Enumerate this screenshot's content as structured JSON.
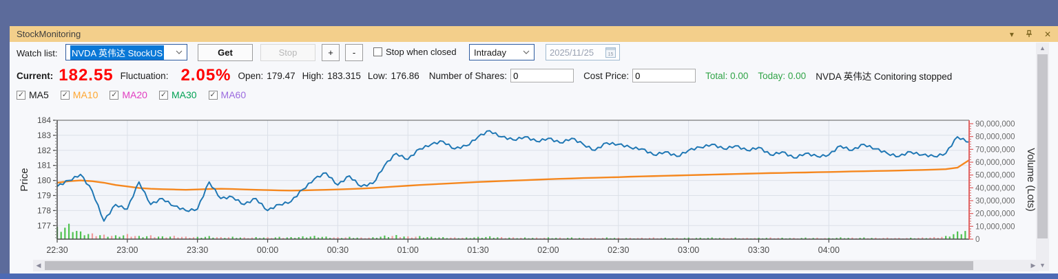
{
  "window": {
    "title": "StockMonitoring",
    "titlebar": {
      "collapse_icon": "▾",
      "close_icon": "✕"
    }
  },
  "toolbar": {
    "watch_list_label": "Watch list:",
    "watch_list_value": "NVDA 英伟达 StockUS",
    "get_label": "Get",
    "stop_label": "Stop",
    "plus_label": "+",
    "minus_label": "-",
    "stop_when_closed_label": "Stop when closed",
    "period_value": "Intraday",
    "date_value": "2025/11/25",
    "calendar_day": "15"
  },
  "info": {
    "current_label": "Current:",
    "current_value": "182.55",
    "fluctuation_label": "Fluctuation:",
    "fluctuation_value": "2.05%",
    "open_label": "Open:",
    "open_value": "179.47",
    "high_label": "High:",
    "high_value": "183.315",
    "low_label": "Low:",
    "low_value": "176.86",
    "shares_label": "Number of Shares:",
    "shares_value": "0",
    "cost_label": "Cost Price:",
    "cost_value": "0",
    "total_text": "Total: 0.00",
    "today_text": "Today: 0.00",
    "status_text": "NVDA 英伟达 Conitoring stopped"
  },
  "ma": {
    "items": [
      {
        "label": "MA5",
        "color": "#1A1A1A",
        "checked": true
      },
      {
        "label": "MA10",
        "color": "#FFA630",
        "checked": true
      },
      {
        "label": "MA20",
        "color": "#E13CC0",
        "checked": true
      },
      {
        "label": "MA30",
        "color": "#00A153",
        "checked": true
      },
      {
        "label": "MA60",
        "color": "#9B6BDF",
        "checked": true
      }
    ]
  },
  "chart_data": {
    "type": "line",
    "title": "",
    "ylabel": "Price",
    "y2label": "Volume (Lots)",
    "ylim": [
      176.1,
      184
    ],
    "y2lim": [
      0,
      90000000
    ],
    "y_ticks": [
      177,
      178,
      179,
      180,
      181,
      182,
      183,
      184
    ],
    "y2_ticks": [
      0,
      10000000,
      20000000,
      30000000,
      40000000,
      50000000,
      60000000,
      70000000,
      80000000,
      90000000
    ],
    "x_total_min": 390,
    "x_step_min": 5,
    "x_ticks": [
      {
        "label": "22:30",
        "min": 0
      },
      {
        "label": "23:00",
        "min": 30
      },
      {
        "label": "23:30",
        "min": 60
      },
      {
        "label": "00:00",
        "min": 90
      },
      {
        "label": "00:30",
        "min": 120
      },
      {
        "label": "01:00",
        "min": 150
      },
      {
        "label": "01:30",
        "min": 180
      },
      {
        "label": "02:00",
        "min": 210
      },
      {
        "label": "02:30",
        "min": 240
      },
      {
        "label": "03:00",
        "min": 270
      },
      {
        "label": "03:30",
        "min": 300
      },
      {
        "label": "04:00",
        "min": 330
      }
    ],
    "grid": true,
    "legend": "none",
    "series": [
      {
        "name": "price",
        "color": "#1F77B4",
        "values": [
          179.6,
          180.0,
          180.4,
          179.3,
          177.3,
          178.4,
          178.1,
          179.9,
          178.4,
          178.8,
          178.3,
          178.0,
          178.1,
          179.9,
          178.8,
          178.9,
          178.4,
          178.8,
          178.0,
          178.4,
          178.6,
          179.4,
          180.1,
          180.5,
          179.7,
          180.3,
          179.6,
          179.8,
          181.0,
          181.8,
          181.4,
          182.1,
          182.4,
          182.6,
          182.1,
          182.3,
          182.9,
          183.3,
          182.9,
          182.7,
          182.9,
          182.6,
          182.8,
          182.5,
          182.8,
          182.4,
          182.0,
          182.5,
          182.4,
          182.2,
          182.1,
          181.7,
          181.9,
          181.6,
          182.0,
          182.2,
          182.4,
          182.1,
          182.3,
          182.0,
          182.2,
          181.7,
          181.9,
          181.5,
          181.8,
          181.6,
          181.7,
          182.3,
          182.0,
          182.4,
          182.1,
          181.8,
          181.6,
          181.9,
          181.7,
          181.6,
          181.8,
          182.9,
          182.55
        ]
      },
      {
        "name": "MA10",
        "color": "#F5871E",
        "values": [
          179.85,
          179.95,
          180.0,
          179.95,
          179.85,
          179.7,
          179.6,
          179.5,
          179.45,
          179.42,
          179.4,
          179.38,
          179.4,
          179.43,
          179.45,
          179.43,
          179.4,
          179.38,
          179.36,
          179.34,
          179.33,
          179.34,
          179.36,
          179.38,
          179.4,
          179.43,
          179.46,
          179.5,
          179.55,
          179.6,
          179.65,
          179.7,
          179.74,
          179.78,
          179.82,
          179.86,
          179.9,
          179.93,
          179.96,
          179.99,
          180.02,
          180.05,
          180.08,
          180.11,
          180.13,
          180.16,
          180.18,
          180.2,
          180.22,
          180.25,
          180.27,
          180.29,
          180.31,
          180.33,
          180.35,
          180.37,
          180.39,
          180.41,
          180.43,
          180.45,
          180.47,
          180.49,
          180.5,
          180.52,
          180.53,
          180.55,
          180.56,
          180.58,
          180.6,
          180.61,
          180.63,
          180.64,
          180.66,
          180.68,
          180.7,
          180.72,
          180.75,
          180.85,
          181.35
        ]
      }
    ],
    "volume": {
      "color_up": "#4FC24F",
      "color_down": "#F09B9B",
      "values": [
        9500000,
        12000000,
        6000000,
        4500000,
        3500000,
        3000000,
        4000000,
        2500000,
        3000000,
        2200000,
        2600000,
        2000000,
        1800000,
        2400000,
        1600000,
        1900000,
        1400000,
        1600000,
        1500000,
        1800000,
        1600000,
        2200000,
        2600000,
        2000000,
        1500000,
        1800000,
        1300000,
        1500000,
        2800000,
        3200000,
        2200000,
        2400000,
        1800000,
        1600000,
        1400000,
        1300000,
        1800000,
        2200000,
        1600000,
        1400000,
        1300000,
        1200000,
        1400000,
        1200000,
        1300000,
        1100000,
        1200000,
        1300000,
        1100000,
        1000000,
        1100000,
        1300000,
        1100000,
        1000000,
        1200000,
        1100000,
        1300000,
        1100000,
        1200000,
        1000000,
        1100000,
        1300000,
        1100000,
        1000000,
        1200000,
        1100000,
        1000000,
        1400000,
        1200000,
        1300000,
        1100000,
        1200000,
        1000000,
        1100000,
        1300000,
        1600000,
        2500000,
        6000000,
        9000000
      ]
    },
    "axis_colors": {
      "left_spine": "#4A4A4A",
      "right_spine": "#E06666",
      "grid": "#DCE0E8",
      "plot_bg": "#F3F5FA"
    }
  }
}
